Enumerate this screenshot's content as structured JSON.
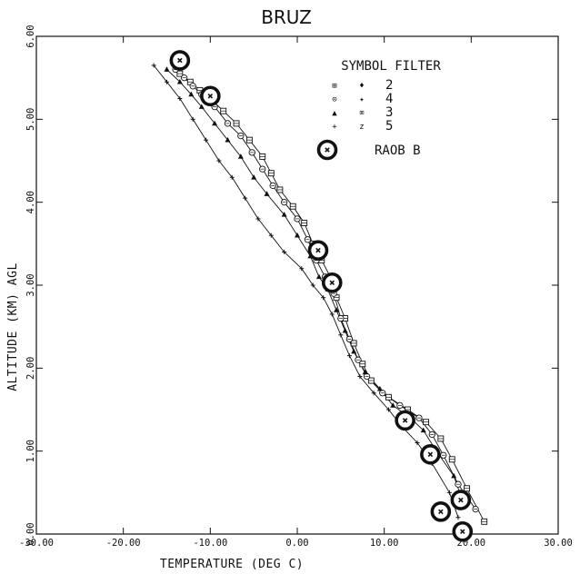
{
  "chart_data": {
    "type": "line",
    "title": "BRUZ",
    "xlabel": "TEMPERATURE  (DEG C)",
    "ylabel": "ALTITUDE  (KM)  AGL",
    "xlim": [
      -30,
      30
    ],
    "ylim": [
      0,
      6
    ],
    "xticks": [
      "-30.00",
      "-20.00",
      "-10.00",
      "0.00",
      "10.00",
      "20.00",
      "30.00"
    ],
    "yticks": [
      "0.00",
      "1.00",
      "2.00",
      "3.00",
      "4.00",
      "5.00",
      "6.00"
    ],
    "grid": false,
    "legend": {
      "header": "SYMBOL  FILTER",
      "placement": "top-right",
      "entries": [
        {
          "symbols": [
            "⊞",
            "♦"
          ],
          "label": "2"
        },
        {
          "symbols": [
            "⊙",
            "✦"
          ],
          "label": "4"
        },
        {
          "symbols": [
            "▲",
            "⌧"
          ],
          "label": "3"
        },
        {
          "symbols": [
            "+",
            "z"
          ],
          "label": "5"
        },
        {
          "symbols": [
            "ⓧ"
          ],
          "label": "RAOB B"
        }
      ]
    },
    "series": [
      {
        "marker": "square",
        "x": [
          21.5,
          19.5,
          17.8,
          16.5,
          14.8,
          12.7,
          10.5,
          8.5,
          7.5,
          6.5,
          5.5,
          4.5,
          3.8,
          2.8,
          1.8,
          0.8,
          -0.5,
          -2.0,
          -3.0,
          -4.0,
          -5.5,
          -7.0,
          -8.5,
          -10.0,
          -11.2,
          -12.3,
          -13.5
        ],
        "y": [
          0.15,
          0.55,
          0.9,
          1.15,
          1.35,
          1.5,
          1.65,
          1.85,
          2.05,
          2.3,
          2.6,
          2.85,
          3.1,
          3.3,
          3.5,
          3.75,
          3.95,
          4.15,
          4.35,
          4.55,
          4.75,
          4.95,
          5.1,
          5.25,
          5.35,
          5.45,
          5.55
        ]
      },
      {
        "marker": "circle",
        "x": [
          20.5,
          18.5,
          16.8,
          15.5,
          14.0,
          11.8,
          9.8,
          8.0,
          7.0,
          6.0,
          5.0,
          4.2,
          3.2,
          2.2,
          1.2,
          0.0,
          -1.5,
          -2.8,
          -4.0,
          -5.2,
          -6.5,
          -8.0,
          -9.5,
          -11.0,
          -12.0,
          -13.0,
          -14.0
        ],
        "y": [
          0.3,
          0.6,
          0.95,
          1.2,
          1.4,
          1.55,
          1.7,
          1.9,
          2.1,
          2.35,
          2.6,
          2.9,
          3.1,
          3.3,
          3.55,
          3.8,
          4.0,
          4.2,
          4.4,
          4.6,
          4.8,
          4.95,
          5.15,
          5.3,
          5.4,
          5.5,
          5.6
        ]
      },
      {
        "marker": "triangle",
        "x": [
          19.0,
          18.0,
          16.0,
          14.5,
          13.0,
          11.0,
          9.5,
          7.8,
          6.5,
          5.5,
          4.5,
          3.5,
          2.5,
          1.5,
          0.0,
          -1.5,
          -3.5,
          -5.0,
          -6.5,
          -8.0,
          -9.5,
          -11.0,
          -12.2,
          -13.5,
          -15.0
        ],
        "y": [
          0.4,
          0.7,
          1.0,
          1.25,
          1.4,
          1.55,
          1.75,
          1.95,
          2.2,
          2.45,
          2.7,
          2.95,
          3.1,
          3.35,
          3.6,
          3.85,
          4.1,
          4.3,
          4.55,
          4.75,
          4.95,
          5.15,
          5.3,
          5.45,
          5.6
        ]
      },
      {
        "marker": "plus",
        "x": [
          18.5,
          17.5,
          15.5,
          13.8,
          12.0,
          10.5,
          8.8,
          7.2,
          6.0,
          5.0,
          4.0,
          3.0,
          1.8,
          0.5,
          -1.5,
          -3.0,
          -4.5,
          -6.0,
          -7.5,
          -9.0,
          -10.5,
          -12.0,
          -13.5,
          -15.0,
          -16.5
        ],
        "y": [
          0.2,
          0.5,
          0.85,
          1.1,
          1.3,
          1.5,
          1.7,
          1.9,
          2.15,
          2.4,
          2.65,
          2.85,
          3.0,
          3.2,
          3.4,
          3.6,
          3.8,
          4.05,
          4.3,
          4.5,
          4.75,
          5.0,
          5.25,
          5.45,
          5.65
        ]
      },
      {
        "marker": "raob",
        "x": [
          19.0,
          18.8,
          16.5,
          15.3,
          12.4,
          4.0,
          2.4,
          -10.0,
          -13.5
        ],
        "y": [
          0.03,
          0.41,
          0.27,
          0.96,
          1.37,
          3.03,
          3.42,
          5.28,
          5.71
        ]
      }
    ]
  }
}
